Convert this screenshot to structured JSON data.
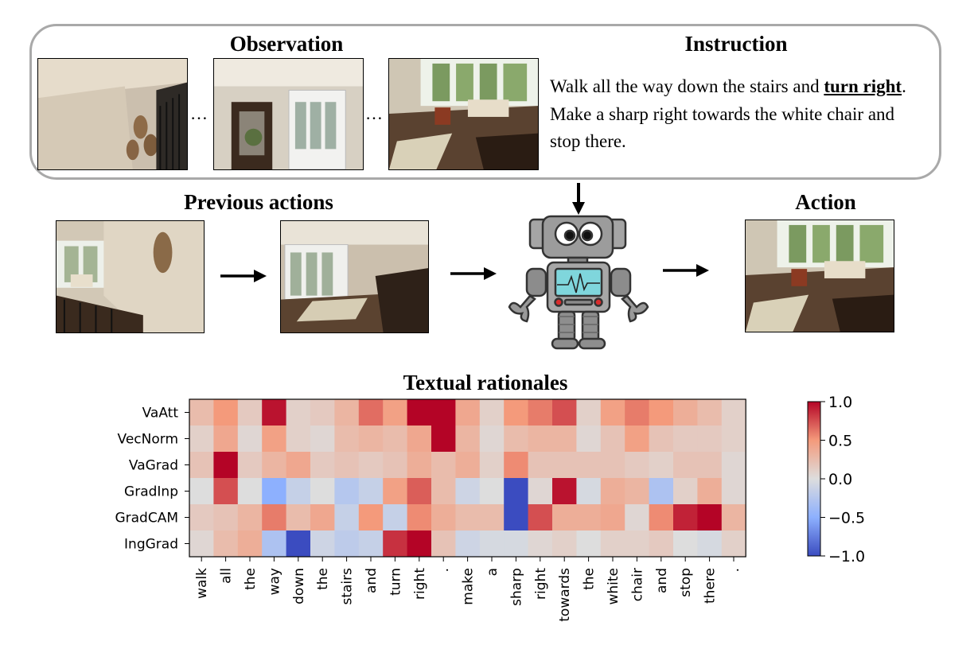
{
  "observation": {
    "title": "Observation",
    "ellipsis_1": "…",
    "ellipsis_2": "…"
  },
  "instruction": {
    "title": "Instruction",
    "text_a": "Walk all the way down the stairs and ",
    "text_bold": "turn right",
    "text_b": ". Make a sharp right towards the white chair and stop there."
  },
  "previous_actions": {
    "title": "Previous actions"
  },
  "action": {
    "title": "Action"
  },
  "rationales": {
    "title": "Textual rationales"
  },
  "colors": {
    "frame": "#a9a9a9",
    "cmap_neg": "#3b4cc0",
    "cmap_mid": "#dddddd",
    "cmap_pos": "#b40426",
    "robot_body": "#9a9a9a",
    "robot_screen": "#7fd6dc"
  },
  "chart_data": {
    "type": "heatmap",
    "title": "Textual rationales",
    "rows": [
      "VaAtt",
      "VecNorm",
      "VaGrad",
      "GradInp",
      "GradCAM",
      "IngGrad"
    ],
    "columns": [
      "walk",
      "all",
      "the",
      "way",
      "down",
      "the",
      "stairs",
      "and",
      "turn",
      "right",
      ".",
      "make",
      "a",
      "sharp",
      "right",
      "towards",
      "the",
      "white",
      "chair",
      "and",
      "stop",
      "there",
      "."
    ],
    "values": [
      [
        0.25,
        0.5,
        0.15,
        0.95,
        0.1,
        0.15,
        0.3,
        0.65,
        0.45,
        1.0,
        1.0,
        0.4,
        0.1,
        0.5,
        0.6,
        0.75,
        0.1,
        0.45,
        0.6,
        0.5,
        0.35,
        0.25,
        0.1
      ],
      [
        0.1,
        0.4,
        0.05,
        0.45,
        0.1,
        0.05,
        0.25,
        0.3,
        0.25,
        0.4,
        1.0,
        0.3,
        0.05,
        0.25,
        0.3,
        0.3,
        0.05,
        0.2,
        0.45,
        0.2,
        0.15,
        0.15,
        0.1
      ],
      [
        0.2,
        1.0,
        0.15,
        0.3,
        0.4,
        0.15,
        0.2,
        0.15,
        0.2,
        0.35,
        0.25,
        0.35,
        0.1,
        0.55,
        0.2,
        0.2,
        0.2,
        0.2,
        0.15,
        0.1,
        0.2,
        0.2,
        0.05
      ],
      [
        0.0,
        0.75,
        0.0,
        -0.5,
        -0.15,
        0.0,
        -0.25,
        -0.15,
        0.45,
        0.7,
        0.25,
        -0.1,
        0.0,
        -1.0,
        0.05,
        0.95,
        -0.05,
        0.35,
        0.3,
        -0.3,
        0.1,
        0.35,
        0.05
      ],
      [
        0.15,
        0.2,
        0.3,
        0.6,
        0.25,
        0.4,
        -0.15,
        0.5,
        -0.15,
        0.55,
        0.35,
        0.25,
        0.25,
        -1.0,
        0.75,
        0.35,
        0.35,
        0.4,
        0.05,
        0.55,
        0.9,
        1.0,
        0.3
      ],
      [
        0.05,
        0.25,
        0.35,
        -0.3,
        -1.0,
        -0.1,
        -0.2,
        -0.15,
        0.85,
        1.0,
        0.2,
        -0.1,
        -0.05,
        -0.05,
        0.05,
        0.1,
        0.0,
        0.1,
        0.1,
        0.15,
        0.0,
        -0.05,
        0.1
      ]
    ],
    "colorbar": {
      "range": [
        -1.0,
        1.0
      ],
      "ticks": [
        "1.0",
        "0.5",
        "0.0",
        "−0.5",
        "−1.0"
      ]
    }
  }
}
